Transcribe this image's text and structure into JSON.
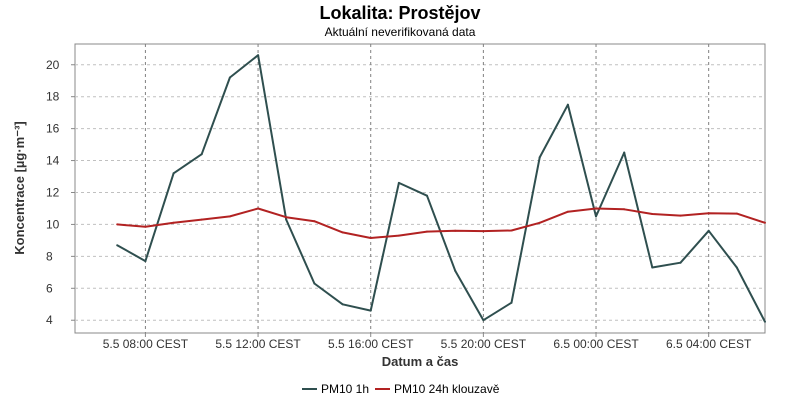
{
  "chart_data": {
    "type": "line",
    "title": "Lokalita: Prostějov",
    "subtitle": "Aktuální neverifikovaná data",
    "xlabel": "Datum a čas",
    "ylabel": "Koncentrace [µg·m⁻³]",
    "x": [
      "5.5 07:00",
      "5.5 08:00",
      "5.5 09:00",
      "5.5 10:00",
      "5.5 11:00",
      "5.5 12:00",
      "5.5 13:00",
      "5.5 14:00",
      "5.5 15:00",
      "5.5 16:00",
      "5.5 17:00",
      "5.5 18:00",
      "5.5 19:00",
      "5.5 20:00",
      "5.5 21:00",
      "5.5 22:00",
      "5.5 23:00",
      "6.5 00:00",
      "6.5 01:00",
      "6.5 02:00",
      "6.5 03:00",
      "6.5 04:00",
      "6.5 05:00",
      "6.5 06:00"
    ],
    "x_start_hour": 6,
    "x_range_hours": [
      5.5,
      30.0
    ],
    "xticks": [
      {
        "hour": 8,
        "label": "5.5 08:00 CEST"
      },
      {
        "hour": 12,
        "label": "5.5 12:00 CEST"
      },
      {
        "hour": 16,
        "label": "5.5 16:00 CEST"
      },
      {
        "hour": 20,
        "label": "5.5 20:00 CEST"
      },
      {
        "hour": 24,
        "label": "6.5 00:00 CEST"
      },
      {
        "hour": 28,
        "label": "6.5 04:00 CEST"
      }
    ],
    "ylim": [
      3.2,
      21.3
    ],
    "yticks": [
      4,
      6,
      8,
      10,
      12,
      14,
      16,
      18,
      20
    ],
    "grid": true,
    "legend_position": "bottom",
    "series": [
      {
        "name": "PM10 1h",
        "color": "#2f4f4f",
        "values": [
          8.7,
          7.7,
          13.2,
          14.4,
          19.2,
          20.6,
          10.3,
          6.3,
          5.0,
          4.6,
          12.6,
          11.8,
          7.1,
          4.0,
          5.1,
          14.2,
          17.5,
          10.5,
          14.5,
          7.3,
          7.6,
          9.6,
          7.3,
          3.9
        ]
      },
      {
        "name": "PM10 24h klouzavě",
        "color": "#b22222",
        "values": [
          10.0,
          9.85,
          10.1,
          10.3,
          10.5,
          11.0,
          10.45,
          10.2,
          9.5,
          9.15,
          9.3,
          9.55,
          9.6,
          9.58,
          9.62,
          10.1,
          10.8,
          11.0,
          10.95,
          10.65,
          10.55,
          10.7,
          10.68,
          10.1
        ]
      }
    ]
  }
}
